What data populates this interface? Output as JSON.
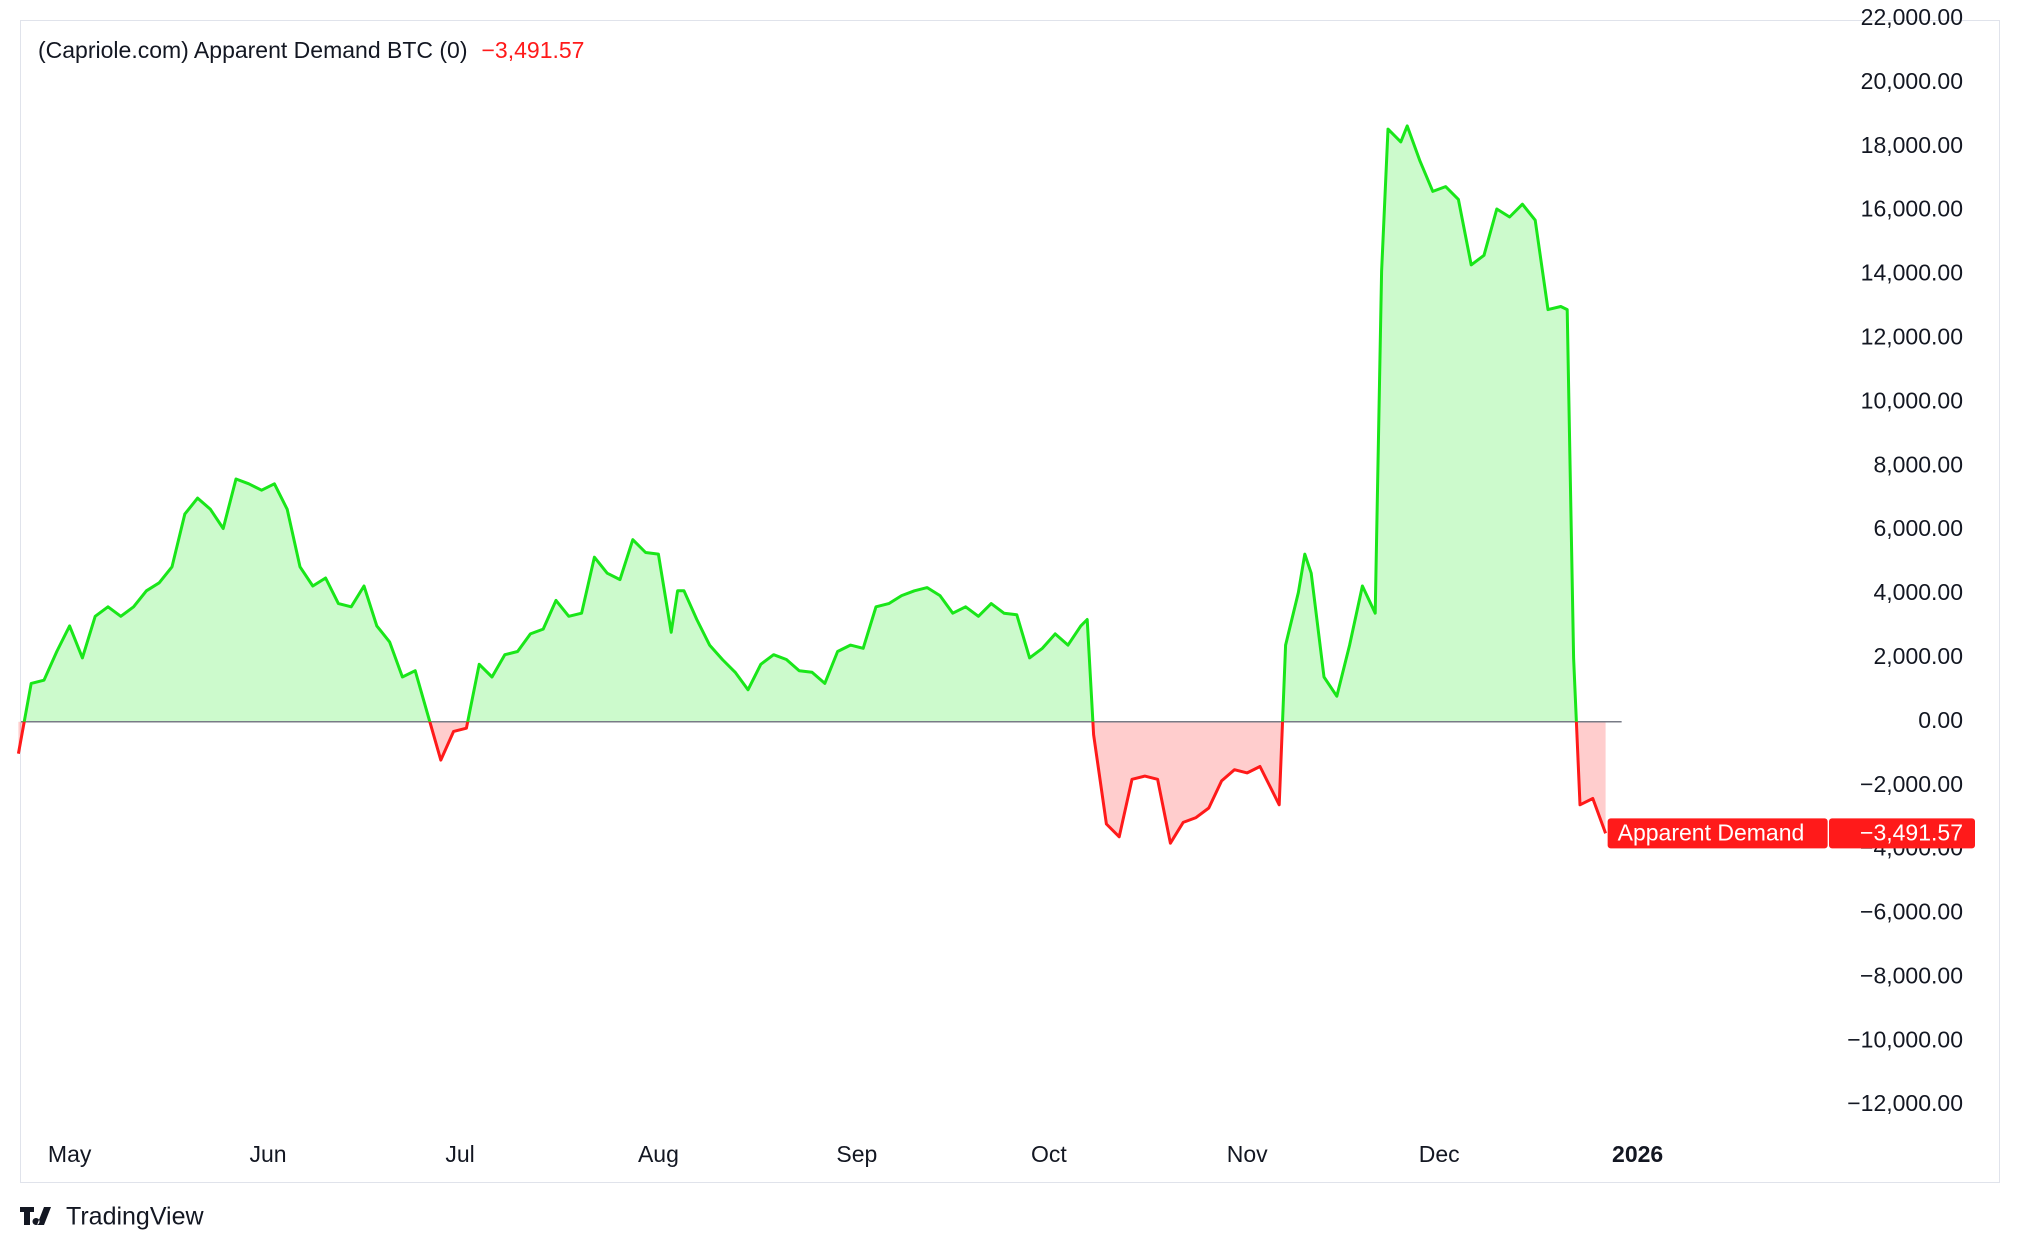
{
  "chart_data": {
    "type": "line",
    "title": "(Capriole.com) Apparent Demand BTC (0)",
    "brand": "TradingView",
    "series": [
      {
        "name": "Apparent Demand",
        "color": "#19e619",
        "negative_color": "#ff1a1a",
        "last_value_label": "−3,491.57",
        "x": [
          -8,
          -6,
          -4,
          -2,
          0,
          2,
          4,
          6,
          8,
          10,
          12,
          14,
          16,
          18,
          20,
          22,
          24,
          26,
          28,
          30,
          32,
          34,
          36,
          38,
          40,
          42,
          44,
          46,
          48,
          50,
          52,
          54,
          56,
          58,
          60,
          62,
          64,
          66,
          68,
          70,
          72,
          74,
          76,
          78,
          80,
          82,
          84,
          86,
          88,
          90,
          92,
          94,
          95,
          96,
          98,
          100,
          102,
          104,
          106,
          108,
          110,
          112,
          114,
          116,
          118,
          120,
          122,
          124,
          126,
          128,
          130,
          132,
          134,
          136,
          138,
          140,
          142,
          144,
          146,
          148,
          150,
          152,
          154,
          156,
          158,
          159,
          160,
          162,
          164,
          166,
          168,
          170,
          172,
          174,
          176,
          178,
          180,
          182,
          184,
          186,
          189,
          190,
          192,
          193,
          194,
          196,
          198,
          200,
          202,
          204,
          205,
          206,
          208,
          209,
          211,
          213,
          215,
          217,
          219,
          221,
          223,
          225,
          227,
          229,
          231,
          233,
          234,
          235,
          236,
          238,
          240
        ],
        "values": [
          -1000,
          1200,
          1300,
          2200,
          3000,
          2000,
          3300,
          3600,
          3300,
          3600,
          4100,
          4350,
          4850,
          6500,
          7000,
          6650,
          6050,
          7600,
          7450,
          7250,
          7450,
          6650,
          4850,
          4250,
          4500,
          3700,
          3600,
          4250,
          3000,
          2500,
          1400,
          1600,
          200,
          -1200,
          -300,
          -200,
          1800,
          1400,
          2100,
          2200,
          2750,
          2900,
          3800,
          3300,
          3400,
          5150,
          4650,
          4450,
          5700,
          5300,
          5250,
          2800,
          4100,
          4100,
          3200,
          2400,
          1950,
          1550,
          1000,
          1800,
          2100,
          1950,
          1600,
          1550,
          1200,
          2200,
          2400,
          2300,
          3600,
          3700,
          3950,
          4100,
          4200,
          3950,
          3400,
          3600,
          3300,
          3700,
          3400,
          3350,
          2000,
          2300,
          2750,
          2400,
          3000,
          3200,
          -400,
          -3200,
          -3600,
          -1800,
          -1700,
          -1800,
          -3800,
          -3150,
          -3000,
          -2700,
          -1850,
          -1500,
          -1600,
          -1400,
          -2600,
          2400,
          4050,
          5250,
          4650,
          1400,
          800,
          2400,
          4250,
          3400,
          14100,
          18550,
          18150,
          18650,
          17550,
          16600,
          16750,
          16350,
          14300,
          14600,
          16050,
          15800,
          16200,
          15700,
          12900,
          13000,
          12900,
          2000,
          -2600,
          -2400,
          -3491.57
        ]
      }
    ],
    "xlim": [
      -7.6,
      274.9
    ],
    "xticks": [
      {
        "value": 0,
        "label": "May"
      },
      {
        "value": 31,
        "label": "Jun"
      },
      {
        "value": 61,
        "label": "Jul"
      },
      {
        "value": 92,
        "label": "Aug"
      },
      {
        "value": 123,
        "label": "Sep"
      },
      {
        "value": 153,
        "label": "Oct"
      },
      {
        "value": 184,
        "label": "Nov"
      },
      {
        "value": 214,
        "label": "Dec"
      },
      {
        "value": 245,
        "label": "2026"
      }
    ],
    "ylim": [
      -12903,
      21935
    ],
    "yticks": [
      {
        "value": -12000,
        "label": "−12,000.00"
      },
      {
        "value": -10000,
        "label": "−10,000.00"
      },
      {
        "value": -8000,
        "label": "−8,000.00"
      },
      {
        "value": -6000,
        "label": "−6,000.00"
      },
      {
        "value": -4000,
        "label": "−4,000.00"
      },
      {
        "value": -2000,
        "label": "−2,000.00"
      },
      {
        "value": 0,
        "label": "0.00"
      },
      {
        "value": 2000,
        "label": "2,000.00"
      },
      {
        "value": 4000,
        "label": "4,000.00"
      },
      {
        "value": 6000,
        "label": "6,000.00"
      },
      {
        "value": 8000,
        "label": "8,000.00"
      },
      {
        "value": 10000,
        "label": "10,000.00"
      },
      {
        "value": 12000,
        "label": "12,000.00"
      },
      {
        "value": 14000,
        "label": "14,000.00"
      },
      {
        "value": 16000,
        "label": "16,000.00"
      },
      {
        "value": 18000,
        "label": "18,000.00"
      },
      {
        "value": 20000,
        "label": "20,000.00"
      },
      {
        "value": 22000,
        "label": "22,000.00"
      }
    ],
    "grid": false
  }
}
